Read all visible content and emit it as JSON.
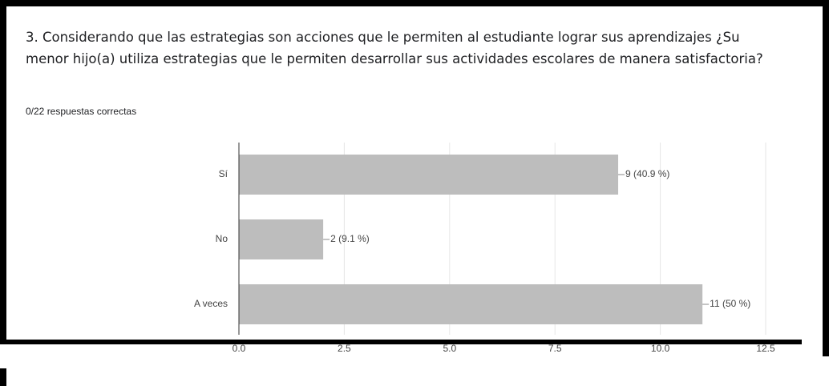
{
  "chart_data": {
    "type": "hbar",
    "title": "3. Considerando que las estrategias son acciones que le permiten al estudiante lograr sus aprendizajes ¿Su menor hijo(a) utiliza estrategias que le permiten desarrollar sus actividades escolares de manera satisfactoria?",
    "subtitle": "0/22 respuestas correctas",
    "categories": [
      "Sí",
      "No",
      "A veces"
    ],
    "values": [
      9,
      2,
      11
    ],
    "value_labels": [
      "9 (40.9 %)",
      "2 (9.1 %)",
      "11 (50 %)"
    ],
    "color": "#bdbdbd",
    "xlim": [
      0,
      12.5
    ],
    "xticks": [
      {
        "value": 0,
        "label": "0.0"
      },
      2.5,
      {
        "value": 5,
        "label": "5.0"
      },
      7.5,
      {
        "value": 10,
        "label": "10.0"
      },
      12.5
    ],
    "grid": true
  }
}
